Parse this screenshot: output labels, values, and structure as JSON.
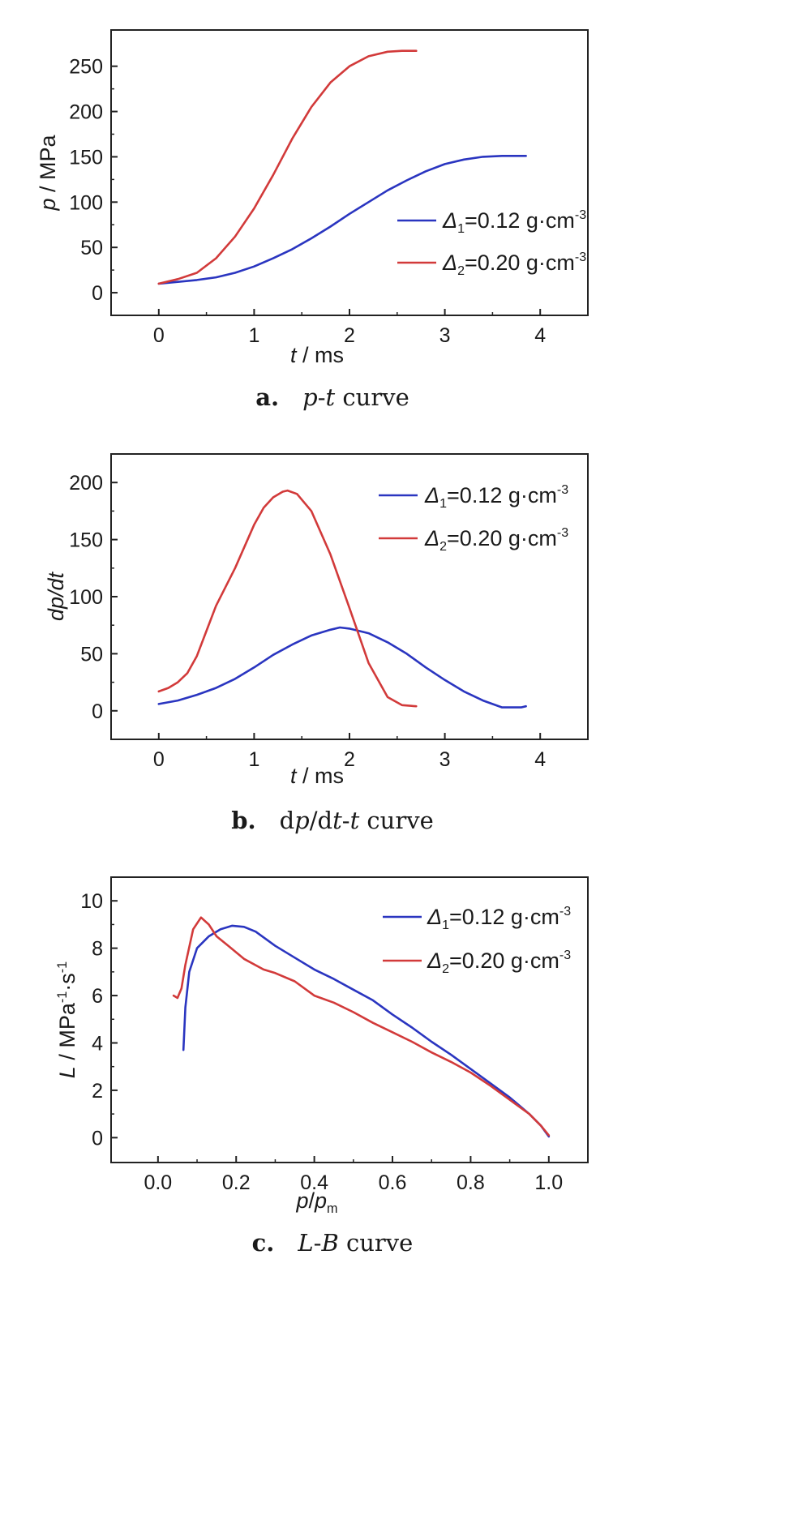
{
  "colors": {
    "series1": "#2a35c0",
    "series2": "#d23a3a",
    "axis": "#222222"
  },
  "captions": [
    {
      "letter": "a.",
      "parts": [
        {
          "t": "p",
          "i": true
        },
        {
          "t": "-",
          "i": false
        },
        {
          "t": "t",
          "i": true
        },
        {
          "t": " curve",
          "i": false
        }
      ]
    },
    {
      "letter": "b.",
      "parts": [
        {
          "t": "d",
          "i": false
        },
        {
          "t": "p",
          "i": true
        },
        {
          "t": "/d",
          "i": false
        },
        {
          "t": "t",
          "i": true
        },
        {
          "t": "-",
          "i": false
        },
        {
          "t": "t",
          "i": true
        },
        {
          "t": " curve",
          "i": false
        }
      ]
    },
    {
      "letter": "c.",
      "parts": [
        {
          "t": "L",
          "i": true
        },
        {
          "t": "-",
          "i": false
        },
        {
          "t": "B",
          "i": true
        },
        {
          "t": " curve",
          "i": false
        }
      ]
    }
  ],
  "legend_entries": [
    {
      "sym": "Δ",
      "sub": "1",
      "text": "=0.12 g·cm",
      "sup": "-3"
    },
    {
      "sym": "Δ",
      "sub": "2",
      "text": "=0.20 g·cm",
      "sup": "-3"
    }
  ],
  "chart_data": [
    {
      "type": "line",
      "xlabel": [
        {
          "t": "t",
          "i": true
        },
        {
          "t": " / ms",
          "i": false
        }
      ],
      "ylabel": [
        {
          "t": "p",
          "i": true
        },
        {
          "t": " / MPa",
          "i": false
        }
      ],
      "xlim": [
        -0.5,
        4.5
      ],
      "ylim": [
        -25,
        290
      ],
      "xticks": [
        0,
        1,
        2,
        3,
        4
      ],
      "yticks": [
        0,
        50,
        100,
        150,
        200,
        250
      ],
      "xtick_labels": [
        "0",
        "1",
        "2",
        "3",
        "4"
      ],
      "ytick_labels": [
        "0",
        "50",
        "100",
        "150",
        "200",
        "250"
      ],
      "legend_position": "center-right",
      "grid": false,
      "series": [
        {
          "name": "Δ1=0.12 g·cm-3",
          "x": [
            0.0,
            0.2,
            0.4,
            0.6,
            0.8,
            1.0,
            1.2,
            1.4,
            1.6,
            1.8,
            2.0,
            2.2,
            2.4,
            2.6,
            2.8,
            3.0,
            3.2,
            3.4,
            3.6,
            3.85
          ],
          "y": [
            10,
            12,
            14,
            17,
            22,
            29,
            38,
            48,
            60,
            73,
            87,
            100,
            113,
            124,
            134,
            142,
            147,
            150,
            151,
            151
          ]
        },
        {
          "name": "Δ2=0.20 g·cm-3",
          "x": [
            0.0,
            0.2,
            0.4,
            0.6,
            0.8,
            1.0,
            1.2,
            1.4,
            1.6,
            1.8,
            2.0,
            2.2,
            2.4,
            2.55,
            2.7
          ],
          "y": [
            10,
            15,
            22,
            38,
            62,
            93,
            130,
            170,
            205,
            232,
            250,
            261,
            266,
            267,
            267
          ]
        }
      ]
    },
    {
      "type": "line",
      "xlabel": [
        {
          "t": "t",
          "i": true
        },
        {
          "t": " / ms",
          "i": false
        }
      ],
      "ylabel": [
        {
          "t": "dp/dt",
          "i": true
        }
      ],
      "xlim": [
        -0.5,
        4.5
      ],
      "ylim": [
        -25,
        225
      ],
      "xticks": [
        0,
        1,
        2,
        3,
        4
      ],
      "yticks": [
        0,
        50,
        100,
        150,
        200
      ],
      "xtick_labels": [
        "0",
        "1",
        "2",
        "3",
        "4"
      ],
      "ytick_labels": [
        "0",
        "50",
        "100",
        "150",
        "200"
      ],
      "legend_position": "top-right",
      "grid": false,
      "series": [
        {
          "name": "Δ1=0.12 g·cm-3",
          "x": [
            0.0,
            0.2,
            0.4,
            0.6,
            0.8,
            1.0,
            1.2,
            1.4,
            1.6,
            1.8,
            1.9,
            2.0,
            2.2,
            2.4,
            2.6,
            2.8,
            3.0,
            3.2,
            3.4,
            3.6,
            3.8,
            3.85
          ],
          "y": [
            6,
            9,
            14,
            20,
            28,
            38,
            49,
            58,
            66,
            71,
            73,
            72,
            68,
            60,
            50,
            38,
            27,
            17,
            9,
            3,
            3,
            4
          ]
        },
        {
          "name": "Δ2=0.20 g·cm-3",
          "x": [
            0.0,
            0.1,
            0.2,
            0.3,
            0.4,
            0.6,
            0.8,
            1.0,
            1.1,
            1.2,
            1.3,
            1.35,
            1.45,
            1.6,
            1.8,
            2.0,
            2.2,
            2.4,
            2.55,
            2.7
          ],
          "y": [
            17,
            20,
            25,
            33,
            48,
            92,
            125,
            163,
            178,
            187,
            192,
            193,
            190,
            175,
            137,
            90,
            42,
            12,
            5,
            4
          ]
        }
      ]
    },
    {
      "type": "line",
      "xlabel": [
        {
          "t": "p",
          "i": true
        },
        {
          "t": "/",
          "i": false
        },
        {
          "t": "p",
          "i": true
        },
        {
          "t": "m",
          "i": false,
          "sub": true
        }
      ],
      "ylabel": [
        {
          "t": "L",
          "i": true
        },
        {
          "t": " / MPa",
          "i": false
        },
        {
          "t": "-1",
          "i": false,
          "sup": true
        },
        {
          "t": "·s",
          "i": false
        },
        {
          "t": "-1",
          "i": false,
          "sup": true
        }
      ],
      "xlim": [
        -0.12,
        1.1
      ],
      "ylim": [
        -1.05,
        11
      ],
      "xticks": [
        0.0,
        0.2,
        0.4,
        0.6,
        0.8,
        1.0
      ],
      "yticks": [
        0,
        2,
        4,
        6,
        8,
        10
      ],
      "xtick_labels": [
        "0.0",
        "0.2",
        "0.4",
        "0.6",
        "0.8",
        "1.0"
      ],
      "ytick_labels": [
        "0",
        "2",
        "4",
        "6",
        "8",
        "10"
      ],
      "legend_position": "top-right",
      "grid": false,
      "series": [
        {
          "name": "Δ1=0.12 g·cm-3",
          "x": [
            0.065,
            0.07,
            0.08,
            0.1,
            0.13,
            0.16,
            0.19,
            0.22,
            0.25,
            0.3,
            0.35,
            0.4,
            0.45,
            0.5,
            0.55,
            0.6,
            0.65,
            0.7,
            0.75,
            0.8,
            0.85,
            0.9,
            0.95,
            0.98,
            1.0
          ],
          "y": [
            3.7,
            5.5,
            7.0,
            8.0,
            8.5,
            8.8,
            8.95,
            8.9,
            8.7,
            8.1,
            7.6,
            7.1,
            6.7,
            6.25,
            5.8,
            5.2,
            4.65,
            4.05,
            3.5,
            2.9,
            2.3,
            1.7,
            1.0,
            0.5,
            0.05
          ]
        },
        {
          "name": "Δ2=0.20 g·cm-3",
          "x": [
            0.04,
            0.05,
            0.06,
            0.07,
            0.09,
            0.11,
            0.13,
            0.15,
            0.18,
            0.22,
            0.27,
            0.3,
            0.35,
            0.4,
            0.45,
            0.5,
            0.55,
            0.6,
            0.65,
            0.7,
            0.75,
            0.8,
            0.85,
            0.9,
            0.95,
            0.98,
            1.0
          ],
          "y": [
            6.0,
            5.9,
            6.3,
            7.3,
            8.8,
            9.3,
            9.0,
            8.5,
            8.1,
            7.55,
            7.1,
            6.95,
            6.6,
            6.0,
            5.7,
            5.3,
            4.85,
            4.45,
            4.05,
            3.6,
            3.2,
            2.75,
            2.2,
            1.6,
            1.0,
            0.5,
            0.1
          ]
        }
      ]
    }
  ]
}
